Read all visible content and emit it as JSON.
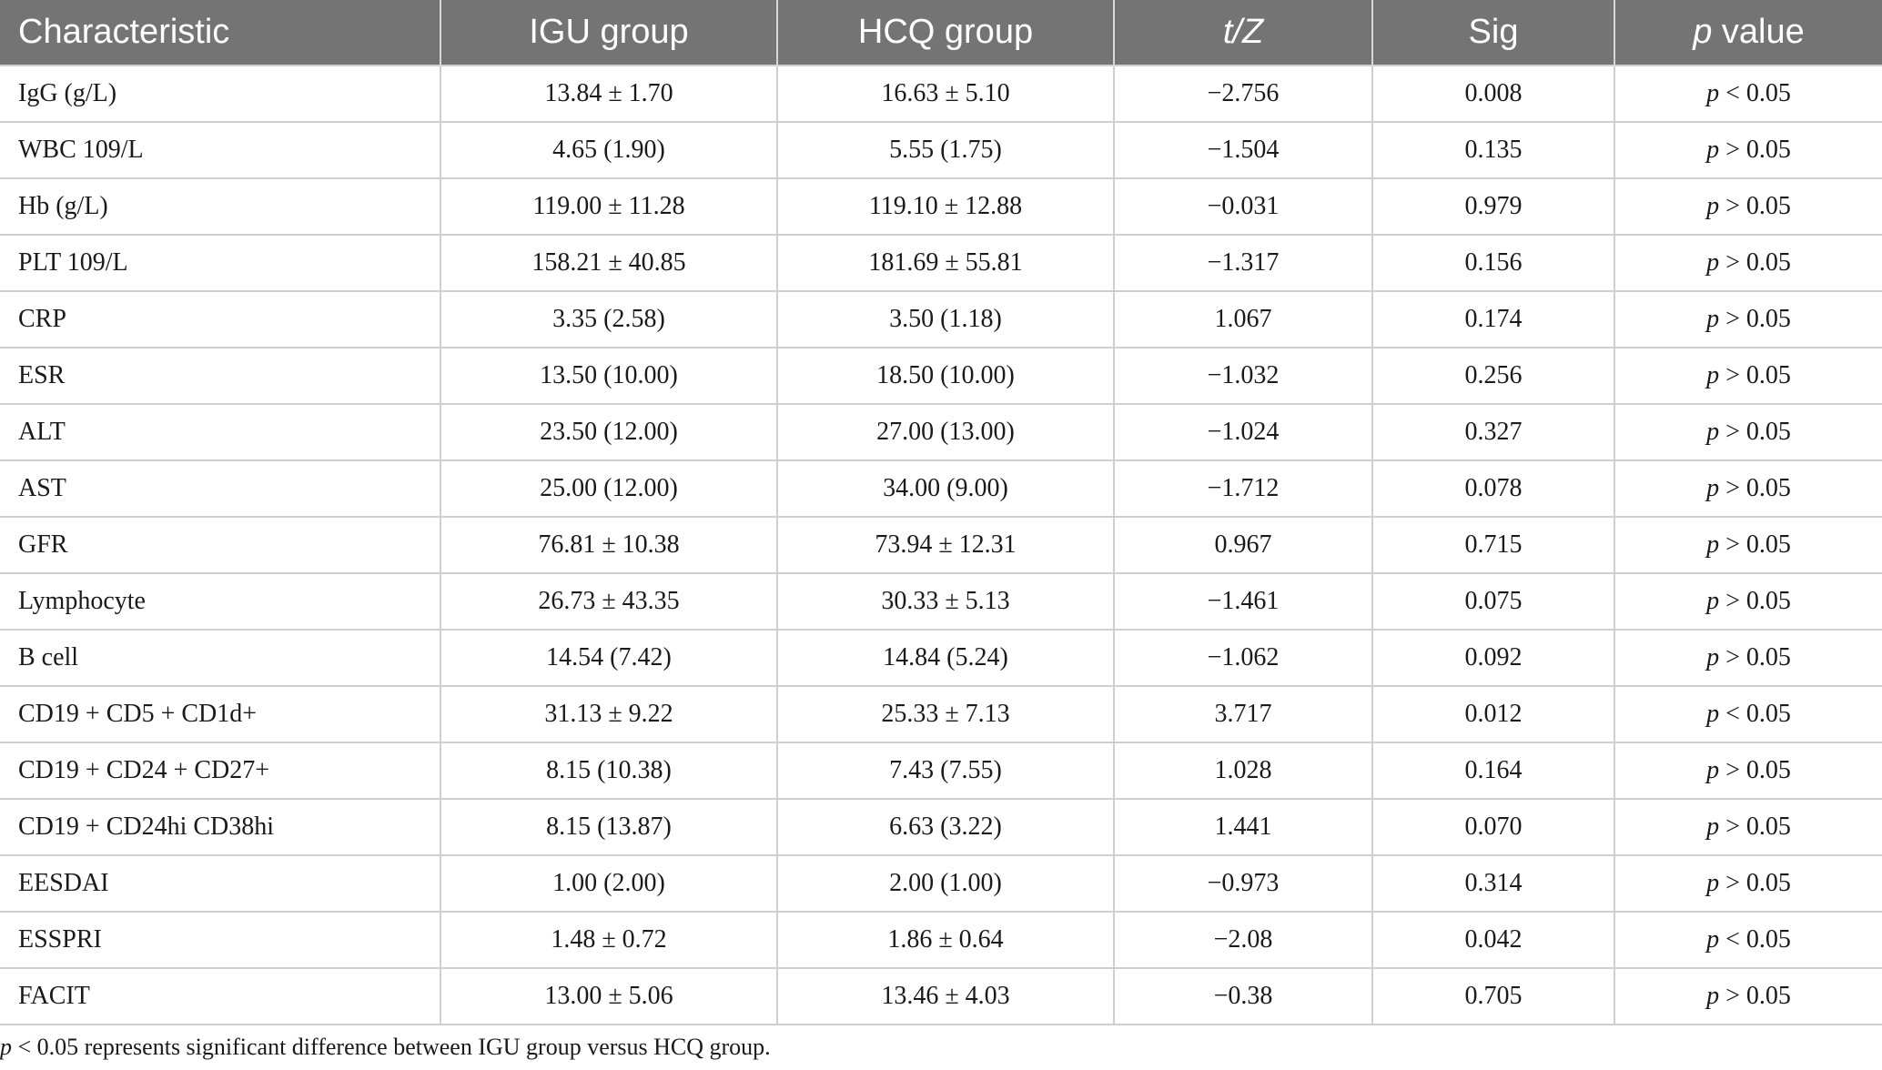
{
  "table": {
    "headers": {
      "characteristic": "Characteristic",
      "igu": "IGU group",
      "hcq": "HCQ group",
      "tz": "t/Z",
      "sig": "Sig",
      "pvalue_var": "p",
      "pvalue_rest": " value"
    },
    "rows": [
      {
        "characteristic": "IgG (g/L)",
        "igu": "13.84 ± 1.70",
        "hcq": "16.63 ± 5.10",
        "tz": "−2.756",
        "sig": "0.008",
        "p_var": "p",
        "p_rest": " < 0.05"
      },
      {
        "characteristic": "WBC 109/L",
        "igu": "4.65 (1.90)",
        "hcq": "5.55 (1.75)",
        "tz": "−1.504",
        "sig": "0.135",
        "p_var": "p",
        "p_rest": " > 0.05"
      },
      {
        "characteristic": "Hb (g/L)",
        "igu": "119.00 ± 11.28",
        "hcq": "119.10 ± 12.88",
        "tz": "−0.031",
        "sig": "0.979",
        "p_var": "p",
        "p_rest": " > 0.05"
      },
      {
        "characteristic": "PLT 109/L",
        "igu": "158.21 ± 40.85",
        "hcq": "181.69 ± 55.81",
        "tz": "−1.317",
        "sig": "0.156",
        "p_var": "p",
        "p_rest": " > 0.05"
      },
      {
        "characteristic": "CRP",
        "igu": "3.35 (2.58)",
        "hcq": "3.50 (1.18)",
        "tz": "1.067",
        "sig": "0.174",
        "p_var": "p",
        "p_rest": " > 0.05"
      },
      {
        "characteristic": "ESR",
        "igu": "13.50 (10.00)",
        "hcq": "18.50 (10.00)",
        "tz": "−1.032",
        "sig": "0.256",
        "p_var": "p",
        "p_rest": " > 0.05"
      },
      {
        "characteristic": "ALT",
        "igu": "23.50 (12.00)",
        "hcq": "27.00 (13.00)",
        "tz": "−1.024",
        "sig": "0.327",
        "p_var": "p",
        "p_rest": " > 0.05"
      },
      {
        "characteristic": "AST",
        "igu": "25.00 (12.00)",
        "hcq": "34.00 (9.00)",
        "tz": "−1.712",
        "sig": "0.078",
        "p_var": "p",
        "p_rest": " > 0.05"
      },
      {
        "characteristic": "GFR",
        "igu": "76.81 ± 10.38",
        "hcq": "73.94 ± 12.31",
        "tz": "0.967",
        "sig": "0.715",
        "p_var": "p",
        "p_rest": " > 0.05"
      },
      {
        "characteristic": "Lymphocyte",
        "igu": "26.73 ± 43.35",
        "hcq": "30.33 ± 5.13",
        "tz": "−1.461",
        "sig": "0.075",
        "p_var": "p",
        "p_rest": " > 0.05"
      },
      {
        "characteristic": "B cell",
        "igu": "14.54 (7.42)",
        "hcq": "14.84 (5.24)",
        "tz": "−1.062",
        "sig": "0.092",
        "p_var": "p",
        "p_rest": " > 0.05"
      },
      {
        "characteristic": "CD19 + CD5 + CD1d+",
        "igu": "31.13 ± 9.22",
        "hcq": "25.33 ± 7.13",
        "tz": "3.717",
        "sig": "0.012",
        "p_var": "p",
        "p_rest": " < 0.05"
      },
      {
        "characteristic": "CD19 + CD24 + CD27+",
        "igu": "8.15 (10.38)",
        "hcq": "7.43 (7.55)",
        "tz": "1.028",
        "sig": "0.164",
        "p_var": "p",
        "p_rest": " > 0.05"
      },
      {
        "characteristic": "CD19 + CD24hi CD38hi",
        "igu": "8.15 (13.87)",
        "hcq": "6.63 (3.22)",
        "tz": "1.441",
        "sig": "0.070",
        "p_var": "p",
        "p_rest": " > 0.05"
      },
      {
        "characteristic": "EESDAI",
        "igu": "1.00 (2.00)",
        "hcq": "2.00 (1.00)",
        "tz": "−0.973",
        "sig": "0.314",
        "p_var": "p",
        "p_rest": " > 0.05"
      },
      {
        "characteristic": "ESSPRI",
        "igu": "1.48 ± 0.72",
        "hcq": "1.86 ± 0.64",
        "tz": "−2.08",
        "sig": "0.042",
        "p_var": "p",
        "p_rest": " < 0.05"
      },
      {
        "characteristic": "FACIT",
        "igu": "13.00 ± 5.06",
        "hcq": "13.46 ± 4.03",
        "tz": "−0.38",
        "sig": "0.705",
        "p_var": "p",
        "p_rest": " > 0.05"
      }
    ]
  },
  "footnote": {
    "p_var": "p",
    "text": " < 0.05 represents significant difference between IGU group versus HCQ group."
  },
  "colors": {
    "header_bg": "#747474",
    "header_text": "#ffffff",
    "grid": "#cfcfcf",
    "body_text": "#1a1a1a"
  }
}
